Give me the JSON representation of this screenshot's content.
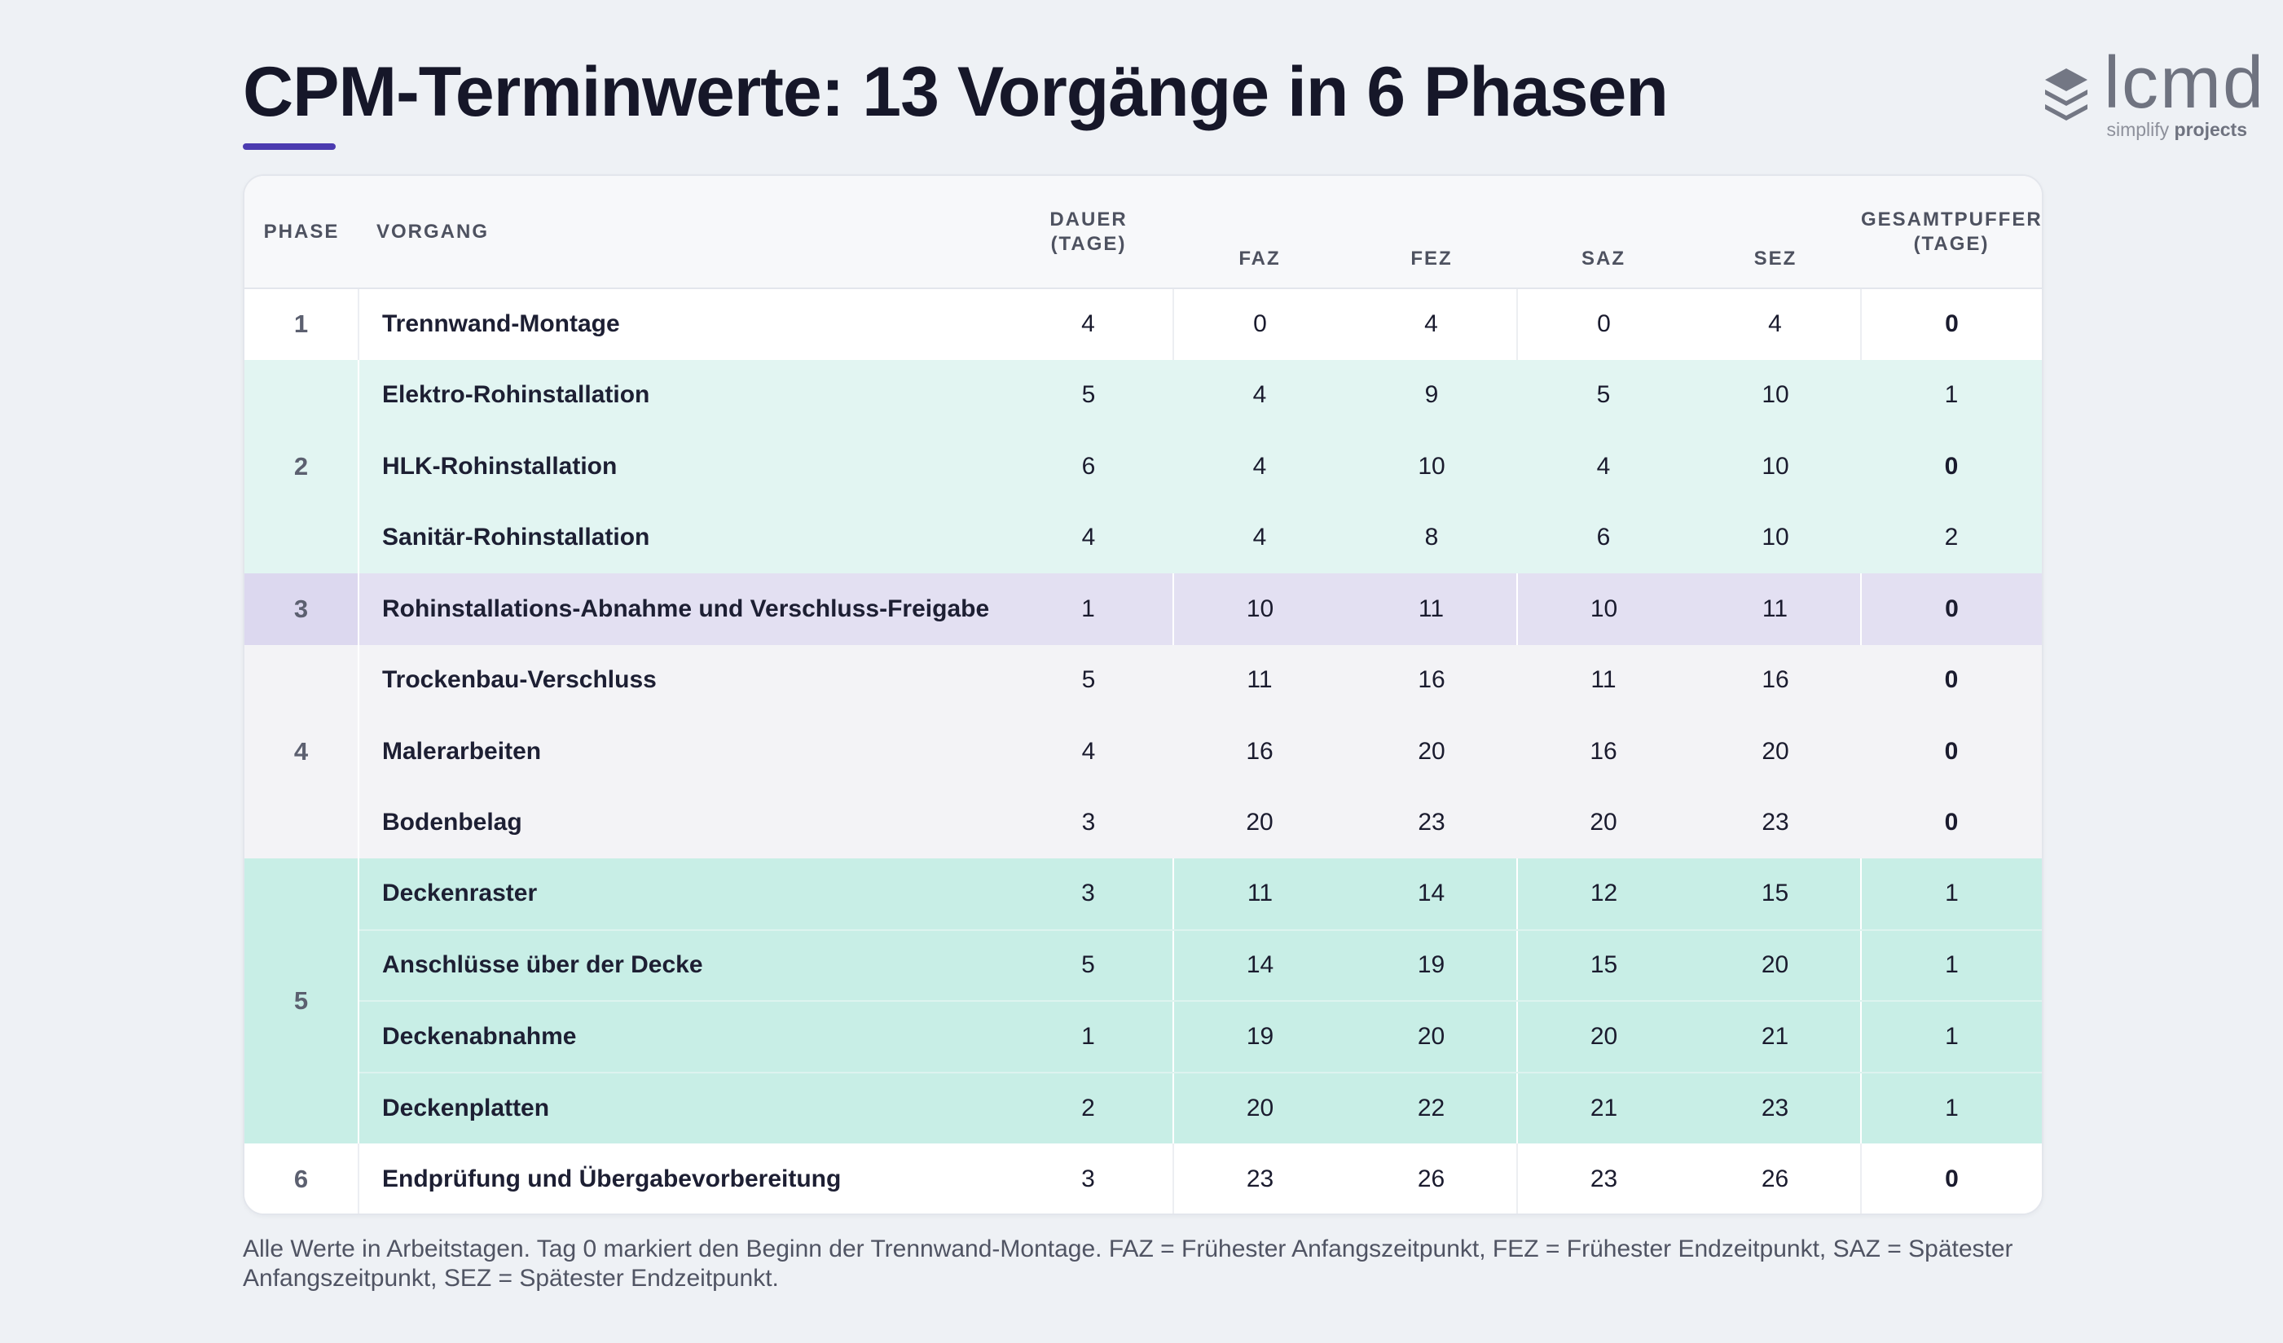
{
  "title": "CPM-Terminwerte: 13 Vorgänge in 6 Phasen",
  "colors": {
    "accent": "#4b3bb0",
    "phase2_bg": "#e2f5f2",
    "phase3_bg": "#e3e0f2",
    "phase4_bg": "#f3f3f6",
    "phase5_bg": "#c8eee6"
  },
  "logo": {
    "icon": "stacked-layers-icon",
    "word": "lcmd",
    "tagline_prefix": "simplify",
    "tagline_bold": "projects"
  },
  "headers": {
    "phase": "PHASE",
    "vorgang": "VORGANG",
    "dauer_line1": "DAUER",
    "dauer_line2": "(TAGE)",
    "faz": "FAZ",
    "fez": "FEZ",
    "saz": "SAZ",
    "sez": "SEZ",
    "gp_line1": "GESAMTPUFFER",
    "gp_line2": "(TAGE)"
  },
  "phases": [
    "1",
    "2",
    "3",
    "4",
    "5",
    "6"
  ],
  "rows": [
    {
      "name": "Trennwand-Montage",
      "dauer": "4",
      "faz": "0",
      "fez": "4",
      "saz": "0",
      "sez": "4",
      "gp": "0"
    },
    {
      "name": "Elektro-Rohinstallation",
      "dauer": "5",
      "faz": "4",
      "fez": "9",
      "saz": "5",
      "sez": "10",
      "gp": "1"
    },
    {
      "name": "HLK-Rohinstallation",
      "dauer": "6",
      "faz": "4",
      "fez": "10",
      "saz": "4",
      "sez": "10",
      "gp": "0"
    },
    {
      "name": "Sanitär-Rohinstallation",
      "dauer": "4",
      "faz": "4",
      "fez": "8",
      "saz": "6",
      "sez": "10",
      "gp": "2"
    },
    {
      "name": "Rohinstallations-Abnahme und Verschluss-Freigabe",
      "dauer": "1",
      "faz": "10",
      "fez": "11",
      "saz": "10",
      "sez": "11",
      "gp": "0"
    },
    {
      "name": "Trockenbau-Verschluss",
      "dauer": "5",
      "faz": "11",
      "fez": "16",
      "saz": "11",
      "sez": "16",
      "gp": "0"
    },
    {
      "name": "Malerarbeiten",
      "dauer": "4",
      "faz": "16",
      "fez": "20",
      "saz": "16",
      "sez": "20",
      "gp": "0"
    },
    {
      "name": "Bodenbelag",
      "dauer": "3",
      "faz": "20",
      "fez": "23",
      "saz": "20",
      "sez": "23",
      "gp": "0"
    },
    {
      "name": "Deckenraster",
      "dauer": "3",
      "faz": "11",
      "fez": "14",
      "saz": "12",
      "sez": "15",
      "gp": "1"
    },
    {
      "name": "Anschlüsse über der Decke",
      "dauer": "5",
      "faz": "14",
      "fez": "19",
      "saz": "15",
      "sez": "20",
      "gp": "1"
    },
    {
      "name": "Deckenabnahme",
      "dauer": "1",
      "faz": "19",
      "fez": "20",
      "saz": "20",
      "sez": "21",
      "gp": "1"
    },
    {
      "name": "Deckenplatten",
      "dauer": "2",
      "faz": "20",
      "fez": "22",
      "saz": "21",
      "sez": "23",
      "gp": "1"
    },
    {
      "name": "Endprüfung und Übergabevorbereitung",
      "dauer": "3",
      "faz": "23",
      "fez": "26",
      "saz": "23",
      "sez": "26",
      "gp": "0"
    }
  ],
  "footnote": "Alle Werte in Arbeitstagen. Tag 0 markiert den Beginn der Trennwand-Montage. FAZ = Frühester Anfangszeitpunkt, FEZ = Frühester Endzeitpunkt, SAZ = Spätester Anfangszeitpunkt, SEZ = Spätester Endzeitpunkt."
}
